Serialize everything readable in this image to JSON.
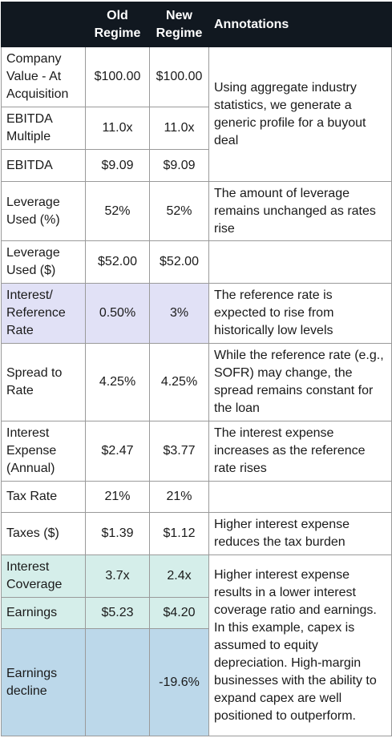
{
  "header": {
    "columns": [
      "Old Regime",
      "New Regime",
      "Annotations"
    ]
  },
  "rows": [
    {
      "label": "Company Value - At Acquisition",
      "old": "$100.00",
      "new": "$100.00",
      "annotation": "Using aggregate industry statistics, we generate a generic profile for a buyout deal"
    },
    {
      "label": "EBITDA Multiple",
      "old": "11.0x",
      "new": "11.0x"
    },
    {
      "label": "EBITDA",
      "old": "$9.09",
      "new": "$9.09"
    },
    {
      "label": "Leverage Used (%)",
      "old": "52%",
      "new": "52%",
      "annotation": "The amount of leverage remains unchanged as rates rise"
    },
    {
      "label": "Leverage Used ($)",
      "old": "$52.00",
      "new": "$52.00"
    },
    {
      "label": "Interest/ Reference Rate",
      "old": "0.50%",
      "new": "3%",
      "annotation": "The reference rate is expected to rise from historically low levels"
    },
    {
      "label": "Spread to Rate",
      "old": "4.25%",
      "new": "4.25%",
      "annotation": "While the reference rate (e.g., SOFR) may change, the spread remains constant for the loan"
    },
    {
      "label": "Interest Expense (Annual)",
      "old": "$2.47",
      "new": "$3.77",
      "annotation": "The interest expense increases as the reference rate rises"
    },
    {
      "label": "Tax Rate",
      "old": "21%",
      "new": "21%"
    },
    {
      "label": "Taxes ($)",
      "old": "$1.39",
      "new": "$1.12",
      "annotation": "Higher interest expense reduces the tax burden"
    },
    {
      "label": "Interest Coverage",
      "old": "3.7x",
      "new": "2.4x",
      "annotation": "Higher interest expense results in a lower interest coverage ratio and earnings. In this example, capex is assumed to equity depreciation. High-margin businesses with the ability to expand capex are well positioned to outperform."
    },
    {
      "label": "Earnings",
      "old": "$5.23",
      "new": "$4.20"
    },
    {
      "label": "Earnings decline",
      "new": "-19.6%"
    }
  ]
}
